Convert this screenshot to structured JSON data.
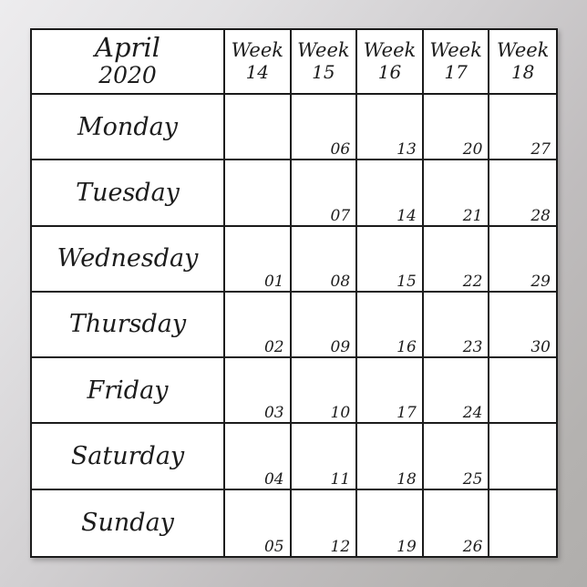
{
  "calendar": {
    "title": {
      "month": "April",
      "year": "2020"
    },
    "week_label": "Week",
    "week_numbers": [
      "14",
      "15",
      "16",
      "17",
      "18"
    ],
    "rows": [
      {
        "day": "Monday",
        "dates": [
          "",
          "06",
          "13",
          "20",
          "27"
        ]
      },
      {
        "day": "Tuesday",
        "dates": [
          "",
          "07",
          "14",
          "21",
          "28"
        ]
      },
      {
        "day": "Wednesday",
        "dates": [
          "01",
          "08",
          "15",
          "22",
          "29"
        ]
      },
      {
        "day": "Thursday",
        "dates": [
          "02",
          "09",
          "16",
          "23",
          "30"
        ]
      },
      {
        "day": "Friday",
        "dates": [
          "03",
          "10",
          "17",
          "24",
          ""
        ]
      },
      {
        "day": "Saturday",
        "dates": [
          "04",
          "11",
          "18",
          "25",
          ""
        ]
      },
      {
        "day": "Sunday",
        "dates": [
          "05",
          "12",
          "19",
          "26",
          ""
        ]
      }
    ],
    "colors": {
      "border": "#1b1b1b",
      "cell_background": "#ffffff",
      "text": "#1c1c1c",
      "poster_background_light": "#edecee",
      "poster_background_dark": "#b0aeac"
    }
  }
}
